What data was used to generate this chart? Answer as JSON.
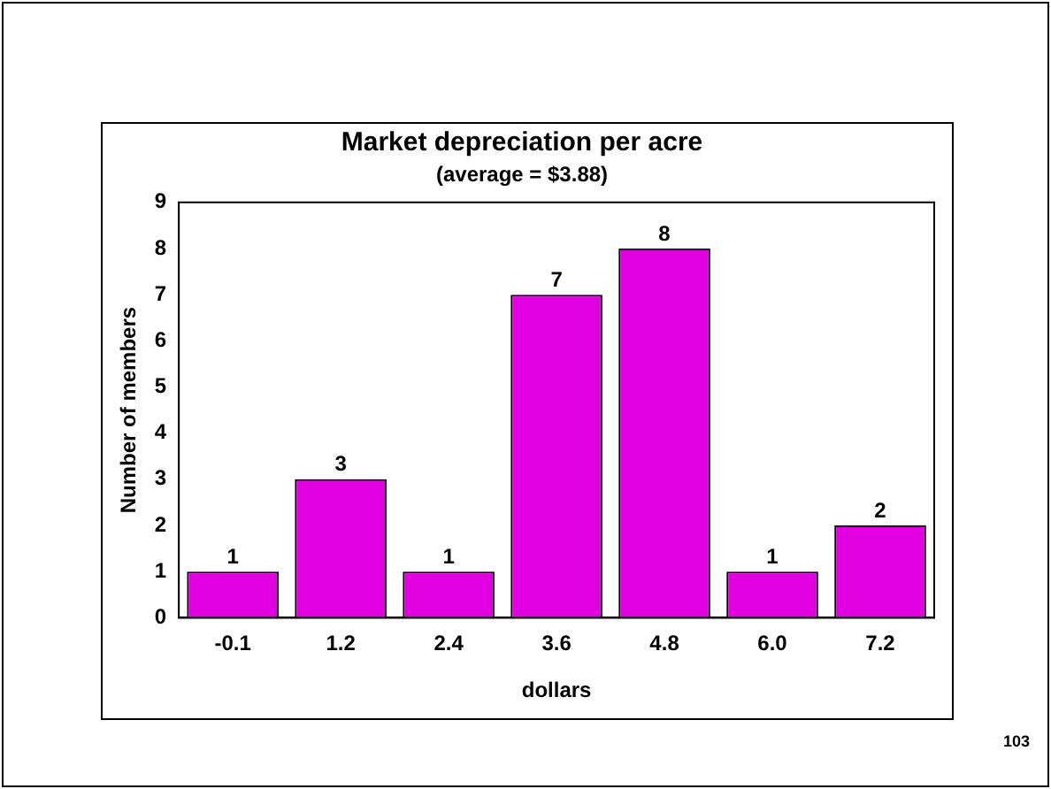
{
  "chart_data": {
    "type": "bar",
    "title": "Market depreciation per acre",
    "subtitle": "(average = $3.88)",
    "xlabel": "dollars",
    "ylabel": "Number of members",
    "categories": [
      "-0.1",
      "1.2",
      "2.4",
      "3.6",
      "4.8",
      "6.0",
      "7.2"
    ],
    "values": [
      1,
      3,
      1,
      7,
      8,
      1,
      2
    ],
    "color": "#e000e0",
    "ylim": [
      0,
      9
    ],
    "yticks": [
      0,
      1,
      2,
      3,
      4,
      5,
      6,
      7,
      8,
      9
    ],
    "grid": false,
    "data_labels": true,
    "annotations": [
      "103"
    ]
  }
}
